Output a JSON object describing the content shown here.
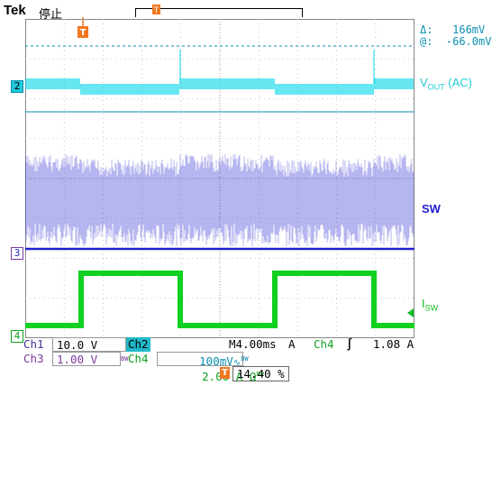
{
  "header": {
    "brand": "Tek",
    "status": "停止",
    "trigger_marker": "T"
  },
  "measurements": {
    "delta": "Δ:   166mV",
    "at": "@:  -66.0mV"
  },
  "channels": {
    "ch2_marker": "2",
    "ch3_marker": "3",
    "ch4_marker": "4",
    "vout_label": "V",
    "vout_sub": "OUT",
    "vout_suffix": " (AC)",
    "sw_label": "SW",
    "isw_label": "I",
    "isw_sub": "SW"
  },
  "settings": {
    "ch1_label": "Ch1",
    "ch1_value": "10.0 V",
    "ch2_label": "Ch2",
    "ch2_value": "100mV",
    "ch2_flags": "∿",
    "ch2_bw": "BW",
    "timebase": "M4.00ms",
    "trigger_mode": "A",
    "trig_source": "Ch4",
    "trig_slope": "∫",
    "trig_level": "1.08 A",
    "ch3_label": "Ch3",
    "ch3_value": "1.00 V",
    "ch3_bw": "BW",
    "ch4_label": "Ch4",
    "ch4_value": "2.00 A Ω",
    "ch4_bw": "BW",
    "trigger_percent": "14.40 %"
  },
  "colors": {
    "ch1": "#c8a800",
    "ch2": "#00d8e8",
    "ch3": "#2020d0",
    "ch4": "#10d020",
    "trigger": "#f07820"
  }
}
